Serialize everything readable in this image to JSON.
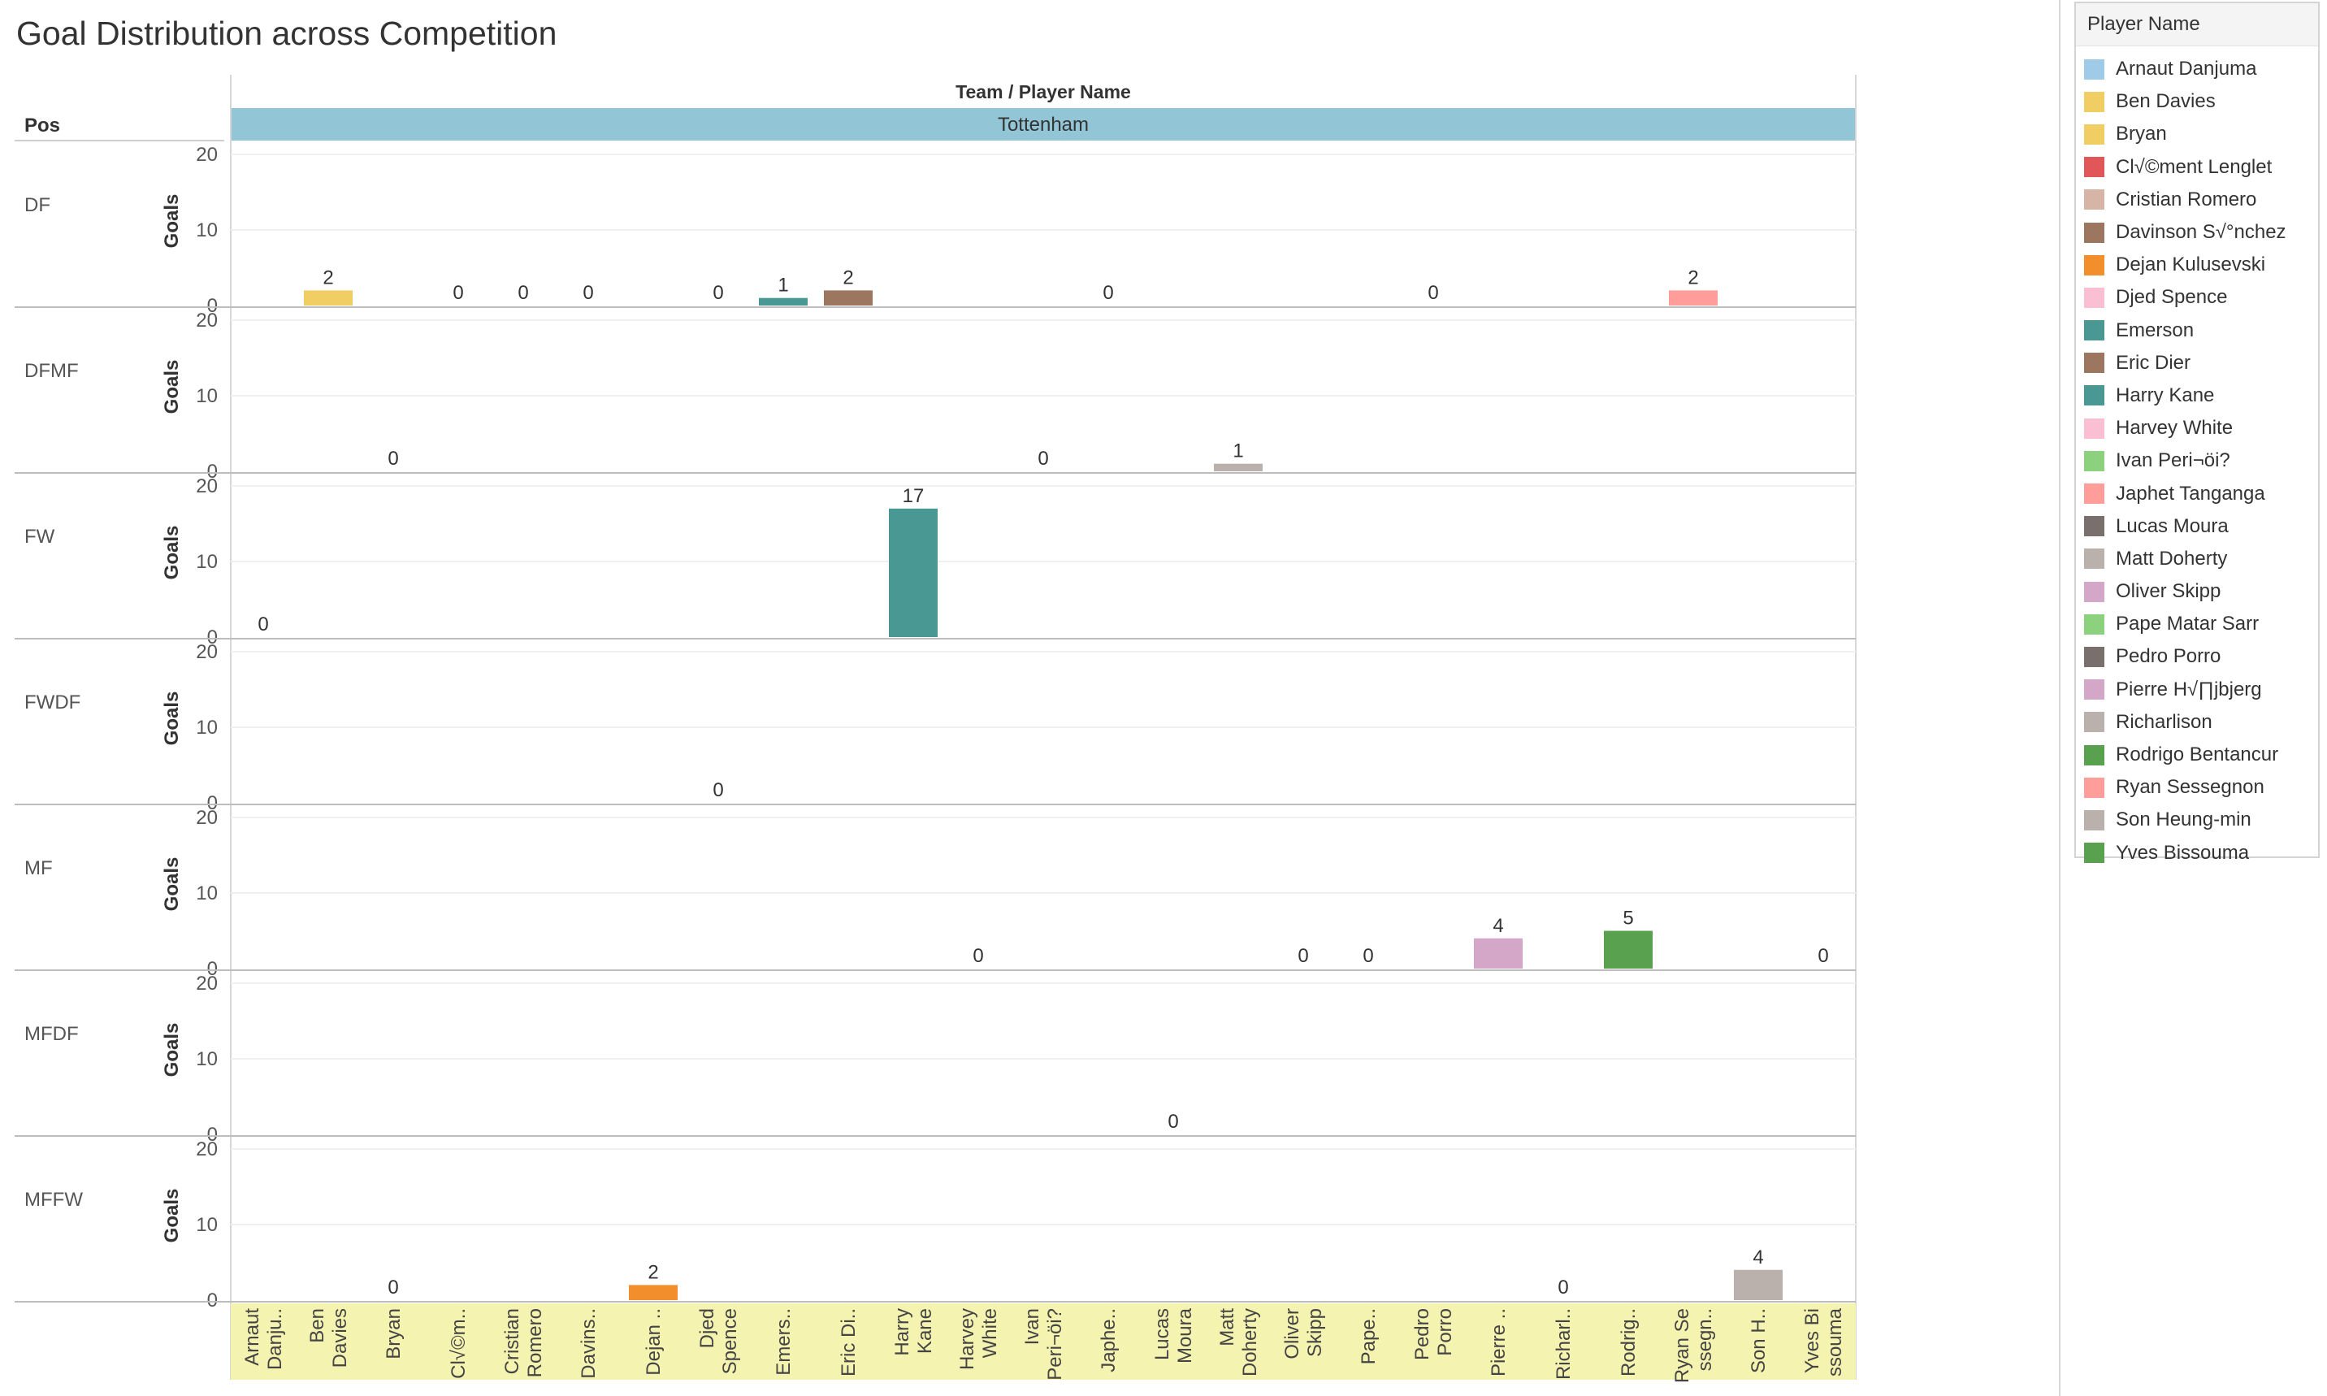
{
  "title": "Goal Distribution across Competition",
  "chart_data": {
    "type": "bar",
    "header_row_label": "Pos",
    "column_header": "Team  /  Player Name",
    "team": "Tottenham",
    "ylabel": "Goals",
    "ylim": [
      0,
      20
    ],
    "yticks": [
      0,
      10,
      20
    ],
    "categories": [
      "Arnaut Danjuma",
      "Ben Davies",
      "Bryan",
      "Cl√©ment Lenglet",
      "Cristian Romero",
      "Davinson S√°nchez",
      "Dejan Kulusevski",
      "Djed Spence",
      "Emerson",
      "Eric Dier",
      "Harry Kane",
      "Harvey White",
      "Ivan Peri¬öi?",
      "Japhet Tanganga",
      "Lucas Moura",
      "Matt Doherty",
      "Oliver Skipp",
      "Pape Matar Sarr",
      "Pedro Porro",
      "Pierre H√∏jbjerg",
      "Richarlison",
      "Rodrigo Bentancur",
      "Ryan Sessegnon",
      "Son Heung-min",
      "Yves Bissouma"
    ],
    "axis_labels": [
      [
        "Arnaut",
        "Danju.."
      ],
      [
        "Ben",
        "Davies"
      ],
      [
        "Bryan"
      ],
      [
        "Cl√©m.."
      ],
      [
        "Cristian",
        "Romero"
      ],
      [
        "Davins.."
      ],
      [
        "Dejan .."
      ],
      [
        "Djed",
        "Spence"
      ],
      [
        "Emers.."
      ],
      [
        "Eric Di.."
      ],
      [
        "Harry",
        "Kane"
      ],
      [
        "Harvey",
        "White"
      ],
      [
        "Ivan",
        "Peri¬öi?"
      ],
      [
        "Japhe.."
      ],
      [
        "Lucas",
        "Moura"
      ],
      [
        "Matt",
        "Doherty"
      ],
      [
        "Oliver",
        "Skipp"
      ],
      [
        "Pape.."
      ],
      [
        "Pedro",
        "Porro"
      ],
      [
        "Pierre .."
      ],
      [
        "Richarl.."
      ],
      [
        "Rodrig.."
      ],
      [
        "Ryan Se",
        "ssegn.."
      ],
      [
        "Son H.."
      ],
      [
        "Yves Bi",
        "ssouma"
      ]
    ],
    "rows": [
      {
        "pos": "DF",
        "values": [
          {
            "player": "Ben Davies",
            "value": 2
          },
          {
            "player": "Cl√©ment Lenglet",
            "value": 0
          },
          {
            "player": "Cristian Romero",
            "value": 0
          },
          {
            "player": "Davinson S√°nchez",
            "value": 0
          },
          {
            "player": "Djed Spence",
            "value": 0
          },
          {
            "player": "Emerson",
            "value": 1
          },
          {
            "player": "Eric Dier",
            "value": 2
          },
          {
            "player": "Japhet Tanganga",
            "value": 0
          },
          {
            "player": "Pedro Porro",
            "value": 0
          },
          {
            "player": "Ryan Sessegnon",
            "value": 2
          }
        ]
      },
      {
        "pos": "DFMF",
        "values": [
          {
            "player": "Bryan",
            "value": 0
          },
          {
            "player": "Ivan Peri¬öi?",
            "value": 0
          },
          {
            "player": "Matt Doherty",
            "value": 1
          }
        ]
      },
      {
        "pos": "FW",
        "values": [
          {
            "player": "Arnaut Danjuma",
            "value": 0
          },
          {
            "player": "Harry Kane",
            "value": 17
          }
        ]
      },
      {
        "pos": "FWDF",
        "values": [
          {
            "player": "Djed Spence",
            "value": 0
          }
        ]
      },
      {
        "pos": "MF",
        "values": [
          {
            "player": "Harvey White",
            "value": 0
          },
          {
            "player": "Oliver Skipp",
            "value": 0
          },
          {
            "player": "Pape Matar Sarr",
            "value": 0
          },
          {
            "player": "Pierre H√∏jbjerg",
            "value": 4
          },
          {
            "player": "Rodrigo Bentancur",
            "value": 5
          },
          {
            "player": "Yves Bissouma",
            "value": 0
          }
        ]
      },
      {
        "pos": "MFDF",
        "values": [
          {
            "player": "Lucas Moura",
            "value": 0
          }
        ]
      },
      {
        "pos": "MFFW",
        "values": [
          {
            "player": "Bryan",
            "value": 0
          },
          {
            "player": "Dejan Kulusevski",
            "value": 2
          },
          {
            "player": "Richarlison",
            "value": 0
          },
          {
            "player": "Son Heung-min",
            "value": 4
          }
        ]
      }
    ],
    "colors": {
      "Arnaut Danjuma": "#a0cbe8",
      "Ben Davies": "#f1ce63",
      "Bryan": "#f1ce63",
      "Cl√©ment Lenglet": "#e15759",
      "Cristian Romero": "#d7b5a6",
      "Davinson S√°nchez": "#9d7660",
      "Dejan Kulusevski": "#f28e2b",
      "Djed Spence": "#fabfd2",
      "Emerson": "#499894",
      "Eric Dier": "#9d7660",
      "Harry Kane": "#499894",
      "Harvey White": "#fabfd2",
      "Ivan Peri¬öi?": "#8cd17d",
      "Japhet Tanganga": "#ff9d9a",
      "Lucas Moura": "#79706e",
      "Matt Doherty": "#bab0ac",
      "Oliver Skipp": "#d4a6c8",
      "Pape Matar Sarr": "#8cd17d",
      "Pedro Porro": "#79706e",
      "Pierre H√∏jbjerg": "#d4a6c8",
      "Richarlison": "#bab0ac",
      "Rodrigo Bentancur": "#59a14f",
      "Ryan Sessegnon": "#ff9d9a",
      "Son Heung-min": "#bab0ac",
      "Yves Bissouma": "#59a14f"
    },
    "team_header_color": "#92c5d6",
    "axis_band_color": "#f5f3b0",
    "legend_title": "Player Name",
    "legend": [
      "Arnaut Danjuma",
      "Ben Davies",
      "Bryan",
      "Cl√©ment Lenglet",
      "Cristian Romero",
      "Davinson S√°nchez",
      "Dejan Kulusevski",
      "Djed Spence",
      "Emerson",
      "Eric Dier",
      "Harry Kane",
      "Harvey White",
      "Ivan Peri¬öi?",
      "Japhet Tanganga",
      "Lucas Moura",
      "Matt Doherty",
      "Oliver Skipp",
      "Pape Matar Sarr",
      "Pedro Porro",
      "Pierre H√∏jbjerg",
      "Richarlison",
      "Rodrigo Bentancur",
      "Ryan Sessegnon",
      "Son Heung-min",
      "Yves Bissouma"
    ],
    "legend_placement": "right",
    "grid": true
  }
}
